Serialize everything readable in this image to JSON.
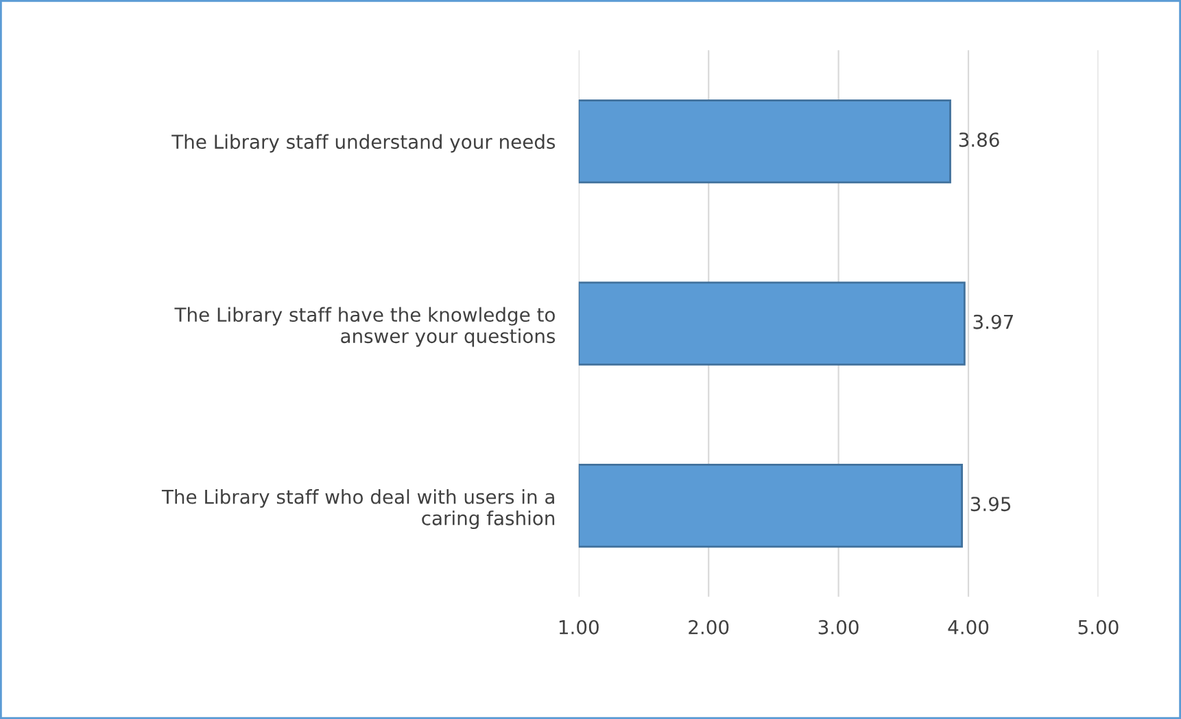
{
  "chart_data": {
    "type": "bar",
    "orientation": "horizontal",
    "categories": [
      "The Library staff understand your needs",
      "The Library staff have the knowledge to\nanswer your questions",
      "The Library staff who deal with users in a\ncaring fashion"
    ],
    "values": [
      3.86,
      3.97,
      3.95
    ],
    "value_labels": [
      "3.86",
      "3.97",
      "3.95"
    ],
    "color": "#5b9bd5",
    "xlim": [
      1,
      5
    ],
    "xticks": [
      {
        "value": 1,
        "label": "1.00"
      },
      {
        "value": 2,
        "label": "2.00"
      },
      {
        "value": 3,
        "label": "3.00"
      },
      {
        "value": 4,
        "label": "4.00"
      },
      {
        "value": 5,
        "label": "5.00"
      }
    ],
    "grid": "x",
    "legend": false
  }
}
